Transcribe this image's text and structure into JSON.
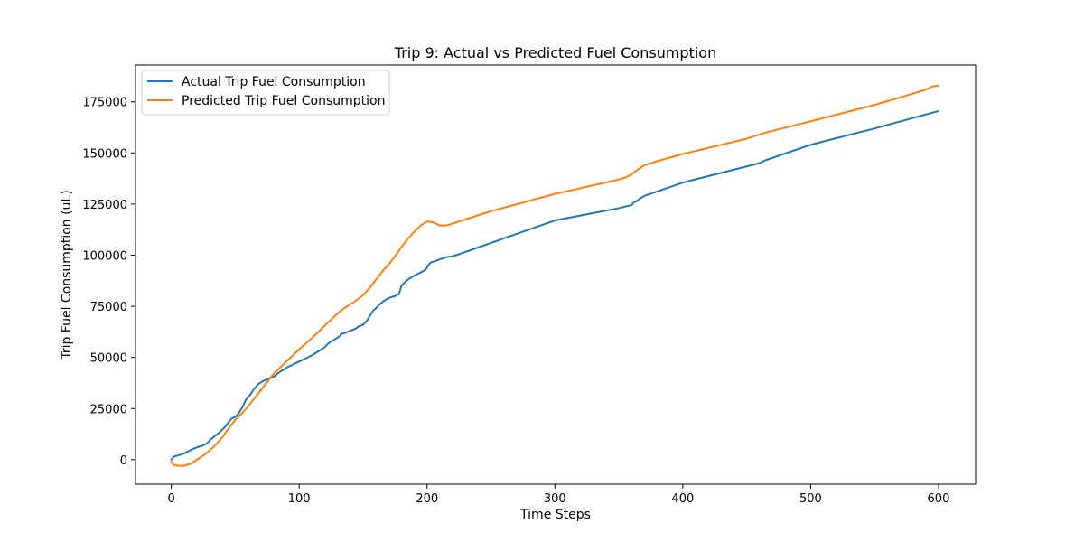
{
  "chart_data": {
    "type": "line",
    "title": "Trip 9: Actual vs Predicted Fuel Consumption",
    "xlabel": "Time Steps",
    "ylabel": "Trip Fuel Consumption (uL)",
    "xlim": [
      -28,
      629
    ],
    "ylim": [
      -12000,
      193000
    ],
    "xticks": [
      0,
      100,
      200,
      300,
      400,
      500,
      600
    ],
    "yticks": [
      0,
      25000,
      50000,
      75000,
      100000,
      125000,
      150000,
      175000
    ],
    "grid": false,
    "legend_position": "top-left",
    "series": [
      {
        "name": "Actual Trip Fuel Consumption",
        "color": "#1f77b4",
        "x": [
          0,
          2,
          5,
          10,
          13,
          16,
          20,
          25,
          28,
          31,
          35,
          38,
          42,
          47,
          50,
          52,
          54,
          56,
          58,
          62,
          64,
          68,
          72,
          76,
          80,
          85,
          88,
          90,
          95,
          100,
          110,
          115,
          120,
          123,
          127,
          131,
          133,
          136,
          140,
          144,
          146,
          150,
          153,
          156,
          158,
          160,
          163,
          166,
          170,
          172,
          175,
          178,
          180,
          183,
          186,
          190,
          195,
          199,
          201,
          203,
          206,
          210,
          215,
          220,
          225,
          250,
          300,
          350,
          360,
          362,
          364,
          366,
          370,
          400,
          460,
          465,
          500,
          550,
          600
        ],
        "y": [
          0,
          1500,
          2000,
          3000,
          4000,
          5000,
          6000,
          7000,
          8000,
          10000,
          12000,
          13500,
          16000,
          20000,
          21000,
          22000,
          24000,
          26000,
          29000,
          32000,
          34000,
          37000,
          38500,
          39500,
          40500,
          43000,
          44000,
          45000,
          46500,
          48000,
          51000,
          53000,
          55000,
          57000,
          58500,
          60000,
          61500,
          62000,
          63000,
          64000,
          65000,
          66000,
          68000,
          71000,
          73000,
          74000,
          76000,
          77500,
          79000,
          79500,
          80000,
          81000,
          85000,
          87000,
          88500,
          90000,
          91500,
          93000,
          95000,
          96500,
          97000,
          98000,
          99000,
          99500,
          100500,
          106000,
          117000,
          123000,
          124500,
          126000,
          126500,
          127500,
          129000,
          135500,
          145000,
          146500,
          154000,
          162000,
          170500
        ]
      },
      {
        "name": "Predicted Trip Fuel Consumption",
        "color": "#ff7f0e",
        "x": [
          0,
          2,
          5,
          10,
          15,
          20,
          25,
          30,
          35,
          40,
          45,
          50,
          55,
          60,
          65,
          70,
          75,
          80,
          90,
          100,
          110,
          115,
          120,
          125,
          130,
          135,
          140,
          145,
          150,
          155,
          160,
          165,
          170,
          175,
          180,
          185,
          190,
          195,
          200,
          205,
          210,
          215,
          220,
          230,
          250,
          300,
          350,
          355,
          360,
          365,
          370,
          380,
          400,
          450,
          465,
          500,
          550,
          580,
          590,
          595,
          600
        ],
        "y": [
          -1000,
          -2500,
          -3000,
          -3000,
          -2000,
          0,
          2000,
          4500,
          7500,
          11000,
          15500,
          19500,
          22500,
          26000,
          30000,
          34000,
          38000,
          42000,
          48000,
          54000,
          59500,
          62500,
          65500,
          68500,
          71500,
          74000,
          76000,
          78000,
          80500,
          84000,
          88000,
          92000,
          95500,
          99500,
          104000,
          108000,
          111500,
          114500,
          116500,
          116000,
          114500,
          114500,
          115500,
          117500,
          121500,
          130000,
          137000,
          138000,
          139500,
          142000,
          144000,
          146000,
          149500,
          157000,
          160000,
          165500,
          173500,
          179000,
          181000,
          182500,
          183000
        ]
      }
    ]
  }
}
